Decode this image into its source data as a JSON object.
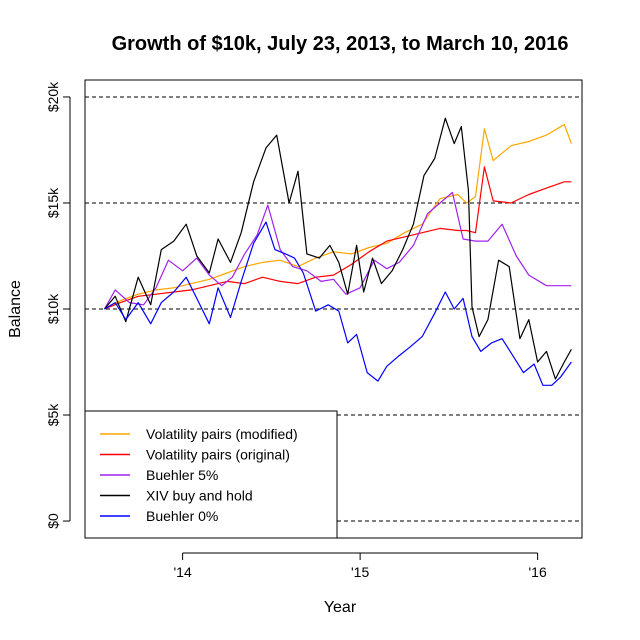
{
  "chart_data": {
    "type": "line",
    "title": "Growth of $10k, July 23, 2013, to March 10, 2016",
    "xlabel": "Year",
    "ylabel": "Balance",
    "xlim": [
      2013.45,
      2016.25
    ],
    "ylim": [
      -800,
      20800
    ],
    "x_ticks": [
      {
        "value": 2014,
        "label": "'14"
      },
      {
        "value": 2015,
        "label": "'15"
      },
      {
        "value": 2016,
        "label": "'16"
      }
    ],
    "y_ticks": [
      {
        "value": 0,
        "label": "$0"
      },
      {
        "value": 5000,
        "label": "$5k"
      },
      {
        "value": 10000,
        "label": "$10k"
      },
      {
        "value": 15000,
        "label": "$15k"
      },
      {
        "value": 20000,
        "label": "$20k"
      }
    ],
    "grid": "horizontal dashed at y ticks",
    "legend_position": "bottom-left",
    "series": [
      {
        "name": "Volatility pairs (modified)",
        "color": "#FFA500",
        "x": [
          2013.56,
          2013.65,
          2013.75,
          2013.85,
          2013.95,
          2014.05,
          2014.15,
          2014.25,
          2014.35,
          2014.45,
          2014.55,
          2014.65,
          2014.75,
          2014.85,
          2014.95,
          2015.05,
          2015.15,
          2015.25,
          2015.35,
          2015.45,
          2015.55,
          2015.6,
          2015.65,
          2015.7,
          2015.75,
          2015.85,
          2015.95,
          2016.05,
          2016.15,
          2016.19
        ],
        "values": [
          10000,
          10400,
          10700,
          10900,
          11000,
          11200,
          11400,
          11700,
          12000,
          12200,
          12300,
          12000,
          12400,
          12700,
          12600,
          12900,
          13100,
          13600,
          14000,
          15200,
          15400,
          15000,
          15300,
          18500,
          17000,
          17700,
          17900,
          18200,
          18700,
          17800
        ]
      },
      {
        "name": "Volatility pairs (original)",
        "color": "#FF0000",
        "x": [
          2013.56,
          2013.65,
          2013.75,
          2013.85,
          2013.95,
          2014.05,
          2014.15,
          2014.25,
          2014.35,
          2014.45,
          2014.55,
          2014.65,
          2014.75,
          2014.85,
          2014.95,
          2015.05,
          2015.15,
          2015.25,
          2015.35,
          2015.45,
          2015.55,
          2015.6,
          2015.65,
          2015.7,
          2015.75,
          2015.85,
          2015.95,
          2016.05,
          2016.15,
          2016.19
        ],
        "values": [
          10000,
          10300,
          10600,
          10700,
          10800,
          10900,
          11100,
          11300,
          11200,
          11500,
          11300,
          11200,
          11500,
          11600,
          12100,
          12700,
          13200,
          13400,
          13600,
          13800,
          13700,
          13700,
          13600,
          16700,
          15100,
          15000,
          15400,
          15700,
          16000,
          16000
        ]
      },
      {
        "name": "Buehler 5%",
        "color": "#A020F0",
        "x": [
          2013.56,
          2013.62,
          2013.7,
          2013.78,
          2013.85,
          2013.92,
          2014.0,
          2014.08,
          2014.15,
          2014.22,
          2014.28,
          2014.35,
          2014.42,
          2014.48,
          2014.55,
          2014.62,
          2014.7,
          2014.78,
          2014.85,
          2014.92,
          2015.0,
          2015.08,
          2015.15,
          2015.22,
          2015.3,
          2015.38,
          2015.45,
          2015.52,
          2015.58,
          2015.65,
          2015.72,
          2015.8,
          2015.88,
          2015.95,
          2016.05,
          2016.12,
          2016.19
        ],
        "values": [
          10000,
          10900,
          10300,
          10200,
          11000,
          12300,
          11800,
          12400,
          11600,
          11100,
          11500,
          12600,
          13500,
          14900,
          12800,
          12000,
          11800,
          11300,
          11400,
          10700,
          11000,
          12300,
          11900,
          12200,
          13000,
          14500,
          15000,
          15500,
          13300,
          13200,
          13200,
          14000,
          12500,
          11600,
          11100,
          11100,
          11100
        ]
      },
      {
        "name": "XIV buy and hold",
        "color": "#000000",
        "x": [
          2013.56,
          2013.62,
          2013.68,
          2013.75,
          2013.82,
          2013.88,
          2013.95,
          2014.02,
          2014.08,
          2014.15,
          2014.2,
          2014.27,
          2014.33,
          2014.4,
          2014.47,
          2014.53,
          2014.6,
          2014.65,
          2014.7,
          2014.77,
          2014.83,
          2014.88,
          2014.93,
          2014.98,
          2015.02,
          2015.07,
          2015.12,
          2015.18,
          2015.24,
          2015.3,
          2015.36,
          2015.42,
          2015.48,
          2015.53,
          2015.57,
          2015.61,
          2015.63,
          2015.67,
          2015.72,
          2015.78,
          2015.84,
          2015.9,
          2015.95,
          2016.0,
          2016.05,
          2016.1,
          2016.15,
          2016.19
        ],
        "values": [
          10000,
          10600,
          9400,
          11500,
          10200,
          12800,
          13200,
          14000,
          12500,
          11700,
          13300,
          12200,
          13600,
          16000,
          17600,
          18200,
          15000,
          16500,
          12600,
          12400,
          13000,
          12200,
          10700,
          13000,
          10800,
          12400,
          11200,
          11800,
          12800,
          14000,
          16300,
          17100,
          19000,
          17800,
          18600,
          15600,
          10100,
          8700,
          9500,
          12300,
          12000,
          8600,
          9500,
          7500,
          8000,
          6700,
          7500,
          8100
        ]
      },
      {
        "name": "Buehler 0%",
        "color": "#0000FF",
        "x": [
          2013.56,
          2013.62,
          2013.68,
          2013.75,
          2013.82,
          2013.88,
          2013.95,
          2014.02,
          2014.08,
          2014.15,
          2014.2,
          2014.27,
          2014.33,
          2014.4,
          2014.47,
          2014.52,
          2014.58,
          2014.63,
          2014.68,
          2014.75,
          2014.82,
          2014.88,
          2014.93,
          2014.98,
          2015.04,
          2015.1,
          2015.15,
          2015.22,
          2015.28,
          2015.35,
          2015.42,
          2015.48,
          2015.53,
          2015.58,
          2015.63,
          2015.68,
          2015.74,
          2015.8,
          2015.86,
          2015.92,
          2015.98,
          2016.03,
          2016.08,
          2016.13,
          2016.19
        ],
        "values": [
          10000,
          10300,
          9500,
          10300,
          9300,
          10300,
          10800,
          11500,
          10500,
          9300,
          11000,
          9600,
          11300,
          13100,
          14100,
          12800,
          12600,
          12400,
          11700,
          9900,
          10200,
          9900,
          8400,
          8800,
          7000,
          6600,
          7300,
          7800,
          8200,
          8700,
          9800,
          10800,
          10000,
          10500,
          8700,
          8000,
          8400,
          8600,
          7800,
          7000,
          7400,
          6400,
          6400,
          6800,
          7500
        ]
      }
    ]
  }
}
